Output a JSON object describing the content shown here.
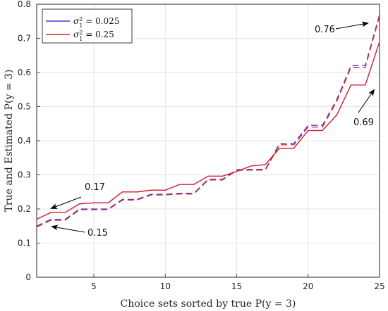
{
  "chart_data": {
    "type": "line",
    "xlabel": "Choice sets sorted by true P(y = 3)",
    "ylabel": "True and Estimated P(y = 3)",
    "xlim": [
      1,
      25
    ],
    "ylim": [
      0,
      0.8
    ],
    "x_ticks": [
      "5",
      "10",
      "15",
      "20",
      "25"
    ],
    "y_ticks": [
      "0",
      "0.1",
      "0.2",
      "0.3",
      "0.4",
      "0.5",
      "0.6",
      "0.7",
      "0.8"
    ],
    "grid": true,
    "legend_position": "top-left",
    "x": [
      1,
      2,
      3,
      4,
      5,
      6,
      7,
      8,
      9,
      10,
      11,
      12,
      13,
      14,
      15,
      16,
      17,
      18,
      19,
      20,
      21,
      22,
      23,
      24,
      25
    ],
    "series": [
      {
        "name": "σ₁² = 0.025",
        "color": "#3b3bd6",
        "true_values": [
          0.17,
          0.19,
          0.19,
          0.215,
          0.218,
          0.218,
          0.25,
          0.25,
          0.255,
          0.255,
          0.272,
          0.272,
          0.296,
          0.296,
          0.31,
          0.326,
          0.33,
          0.378,
          0.378,
          0.43,
          0.43,
          0.475,
          0.563,
          0.563,
          0.69
        ],
        "estimated_values": [
          0.15,
          0.17,
          0.17,
          0.2,
          0.2,
          0.2,
          0.228,
          0.228,
          0.243,
          0.243,
          0.246,
          0.246,
          0.287,
          0.287,
          0.315,
          0.316,
          0.316,
          0.392,
          0.392,
          0.445,
          0.445,
          0.52,
          0.62,
          0.62,
          0.77
        ]
      },
      {
        "name": "σ₁² = 0.25",
        "color": "#e0202a",
        "true_values": [
          0.17,
          0.19,
          0.19,
          0.215,
          0.218,
          0.218,
          0.25,
          0.25,
          0.255,
          0.255,
          0.272,
          0.272,
          0.296,
          0.296,
          0.31,
          0.326,
          0.33,
          0.378,
          0.378,
          0.43,
          0.43,
          0.475,
          0.563,
          0.563,
          0.69
        ],
        "estimated_values": [
          0.147,
          0.167,
          0.167,
          0.198,
          0.198,
          0.198,
          0.226,
          0.226,
          0.241,
          0.241,
          0.244,
          0.244,
          0.285,
          0.285,
          0.313,
          0.314,
          0.314,
          0.388,
          0.388,
          0.44,
          0.44,
          0.515,
          0.615,
          0.615,
          0.765
        ]
      }
    ],
    "legend": {
      "entries": [
        {
          "label_main": "σ",
          "label_sub": "1",
          "label_sup": "2",
          "label_rest": " = 0.025",
          "color": "#3b3bd6"
        },
        {
          "label_main": "σ",
          "label_sub": "1",
          "label_sup": "2",
          "label_rest": " = 0.25",
          "color": "#e0202a"
        }
      ]
    },
    "annotations": [
      {
        "text": "0.76",
        "x": 25,
        "y": 0.76
      },
      {
        "text": "0.17",
        "x": 1,
        "y": 0.17
      },
      {
        "text": "0.15",
        "x": 1,
        "y": 0.15
      },
      {
        "text": "0.69",
        "x": 25,
        "y": 0.69
      }
    ]
  }
}
